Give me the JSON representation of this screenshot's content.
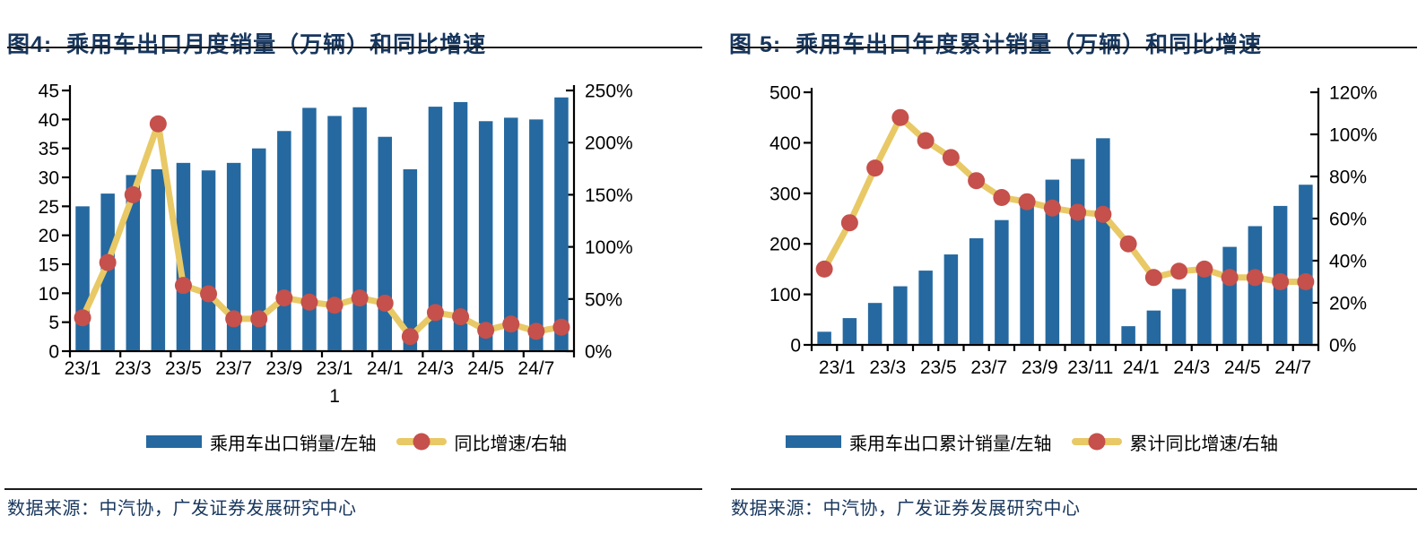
{
  "colors": {
    "bar": "#2569A0",
    "line": "#E8C966",
    "marker": "#C5504C",
    "navy": "#17365D",
    "rule": "#1b1b1b"
  },
  "figures": [
    {
      "title": "图4:  乘用车出口月度销量（万辆）和同比增速",
      "legend": {
        "bar_label": "乘用车出口销量/左轴",
        "line_label": "同比增速/右轴"
      },
      "source": "数据来源：中汽协，广发证券发展研究中心"
    },
    {
      "title": "图 5:  乘用车出口年度累计销量（万辆）和同比增速",
      "legend": {
        "bar_label": "乘用车出口累计销量/左轴",
        "line_label": "累计同比增速/右轴"
      },
      "source": "数据来源：中汽协，广发证券发展研究中心"
    }
  ],
  "chart_data": [
    {
      "type": "bar+line",
      "title": "图4: 乘用车出口月度销量（万辆）和同比增速",
      "categories": [
        "23/1",
        "23/2",
        "23/3",
        "23/4",
        "23/5",
        "23/6",
        "23/7",
        "23/8",
        "23/9",
        "23/10",
        "23/11",
        "23/12",
        "24/1",
        "24/2",
        "24/3",
        "24/4",
        "24/5",
        "24/6",
        "24/7",
        "24/8"
      ],
      "series": [
        {
          "name": "乘用车出口销量/左轴",
          "type": "bar",
          "axis": "left",
          "unit": "万辆",
          "values": [
            25.0,
            27.2,
            30.4,
            31.4,
            32.5,
            31.2,
            32.5,
            35.0,
            38.0,
            42.0,
            40.6,
            42.1,
            37.0,
            31.4,
            42.2,
            43.0,
            39.7,
            40.3,
            40.0,
            43.8
          ]
        },
        {
          "name": "同比增速/右轴",
          "type": "line",
          "axis": "right",
          "unit": "%",
          "values": [
            32,
            85,
            150,
            218,
            63,
            55,
            31,
            31,
            51,
            47,
            44,
            51,
            46,
            14,
            37,
            33,
            20,
            26,
            19,
            23
          ]
        }
      ],
      "left_axis": {
        "min": 0,
        "max": 45,
        "ticks": [
          0,
          5,
          10,
          15,
          20,
          25,
          30,
          35,
          40,
          45
        ]
      },
      "right_axis": {
        "min": 0,
        "max": 250,
        "ticks": [
          0,
          50,
          100,
          150,
          200,
          250
        ],
        "tick_labels": [
          "0%",
          "50%",
          "100%",
          "150%",
          "200%",
          "250%"
        ]
      },
      "x_tick_labels": [
        "23/1",
        "23/3",
        "23/5",
        "23/7",
        "23/9",
        "23/1\n1",
        "24/1",
        "24/3",
        "24/5",
        "24/7"
      ],
      "grid": false,
      "legend_position": "bottom"
    },
    {
      "type": "bar+line",
      "title": "图 5: 乘用车出口年度累计销量（万辆）和同比增速",
      "categories": [
        "23/1",
        "23/2",
        "23/3",
        "23/4",
        "23/5",
        "23/6",
        "23/7",
        "23/8",
        "23/9",
        "23/10",
        "23/11",
        "23/12",
        "24/1",
        "24/2",
        "24/3",
        "24/4",
        "24/5",
        "24/6",
        "24/7",
        "24/8"
      ],
      "series": [
        {
          "name": "乘用车出口累计销量/左轴",
          "type": "bar",
          "axis": "left",
          "unit": "万辆",
          "values": [
            26,
            53,
            83,
            116,
            147,
            179,
            211,
            247,
            280,
            327,
            368,
            409,
            37,
            68,
            111,
            148,
            194,
            235,
            275,
            317
          ]
        },
        {
          "name": "累计同比增速/右轴",
          "type": "line",
          "axis": "right",
          "unit": "%",
          "values": [
            36,
            58,
            84,
            108,
            97,
            89,
            78,
            70,
            68,
            65,
            63,
            62,
            48,
            32,
            35,
            36,
            32,
            32,
            30,
            30
          ]
        }
      ],
      "left_axis": {
        "min": 0,
        "max": 500,
        "ticks": [
          0,
          100,
          200,
          300,
          400,
          500
        ]
      },
      "right_axis": {
        "min": 0,
        "max": 120,
        "ticks": [
          0,
          20,
          40,
          60,
          80,
          100,
          120
        ],
        "tick_labels": [
          "0%",
          "20%",
          "40%",
          "60%",
          "80%",
          "100%",
          "120%"
        ]
      },
      "x_tick_labels": [
        "23/1",
        "23/3",
        "23/5",
        "23/7",
        "23/9",
        "23/11",
        "24/1",
        "24/3",
        "24/5",
        "24/7"
      ],
      "grid": false,
      "legend_position": "bottom"
    }
  ]
}
